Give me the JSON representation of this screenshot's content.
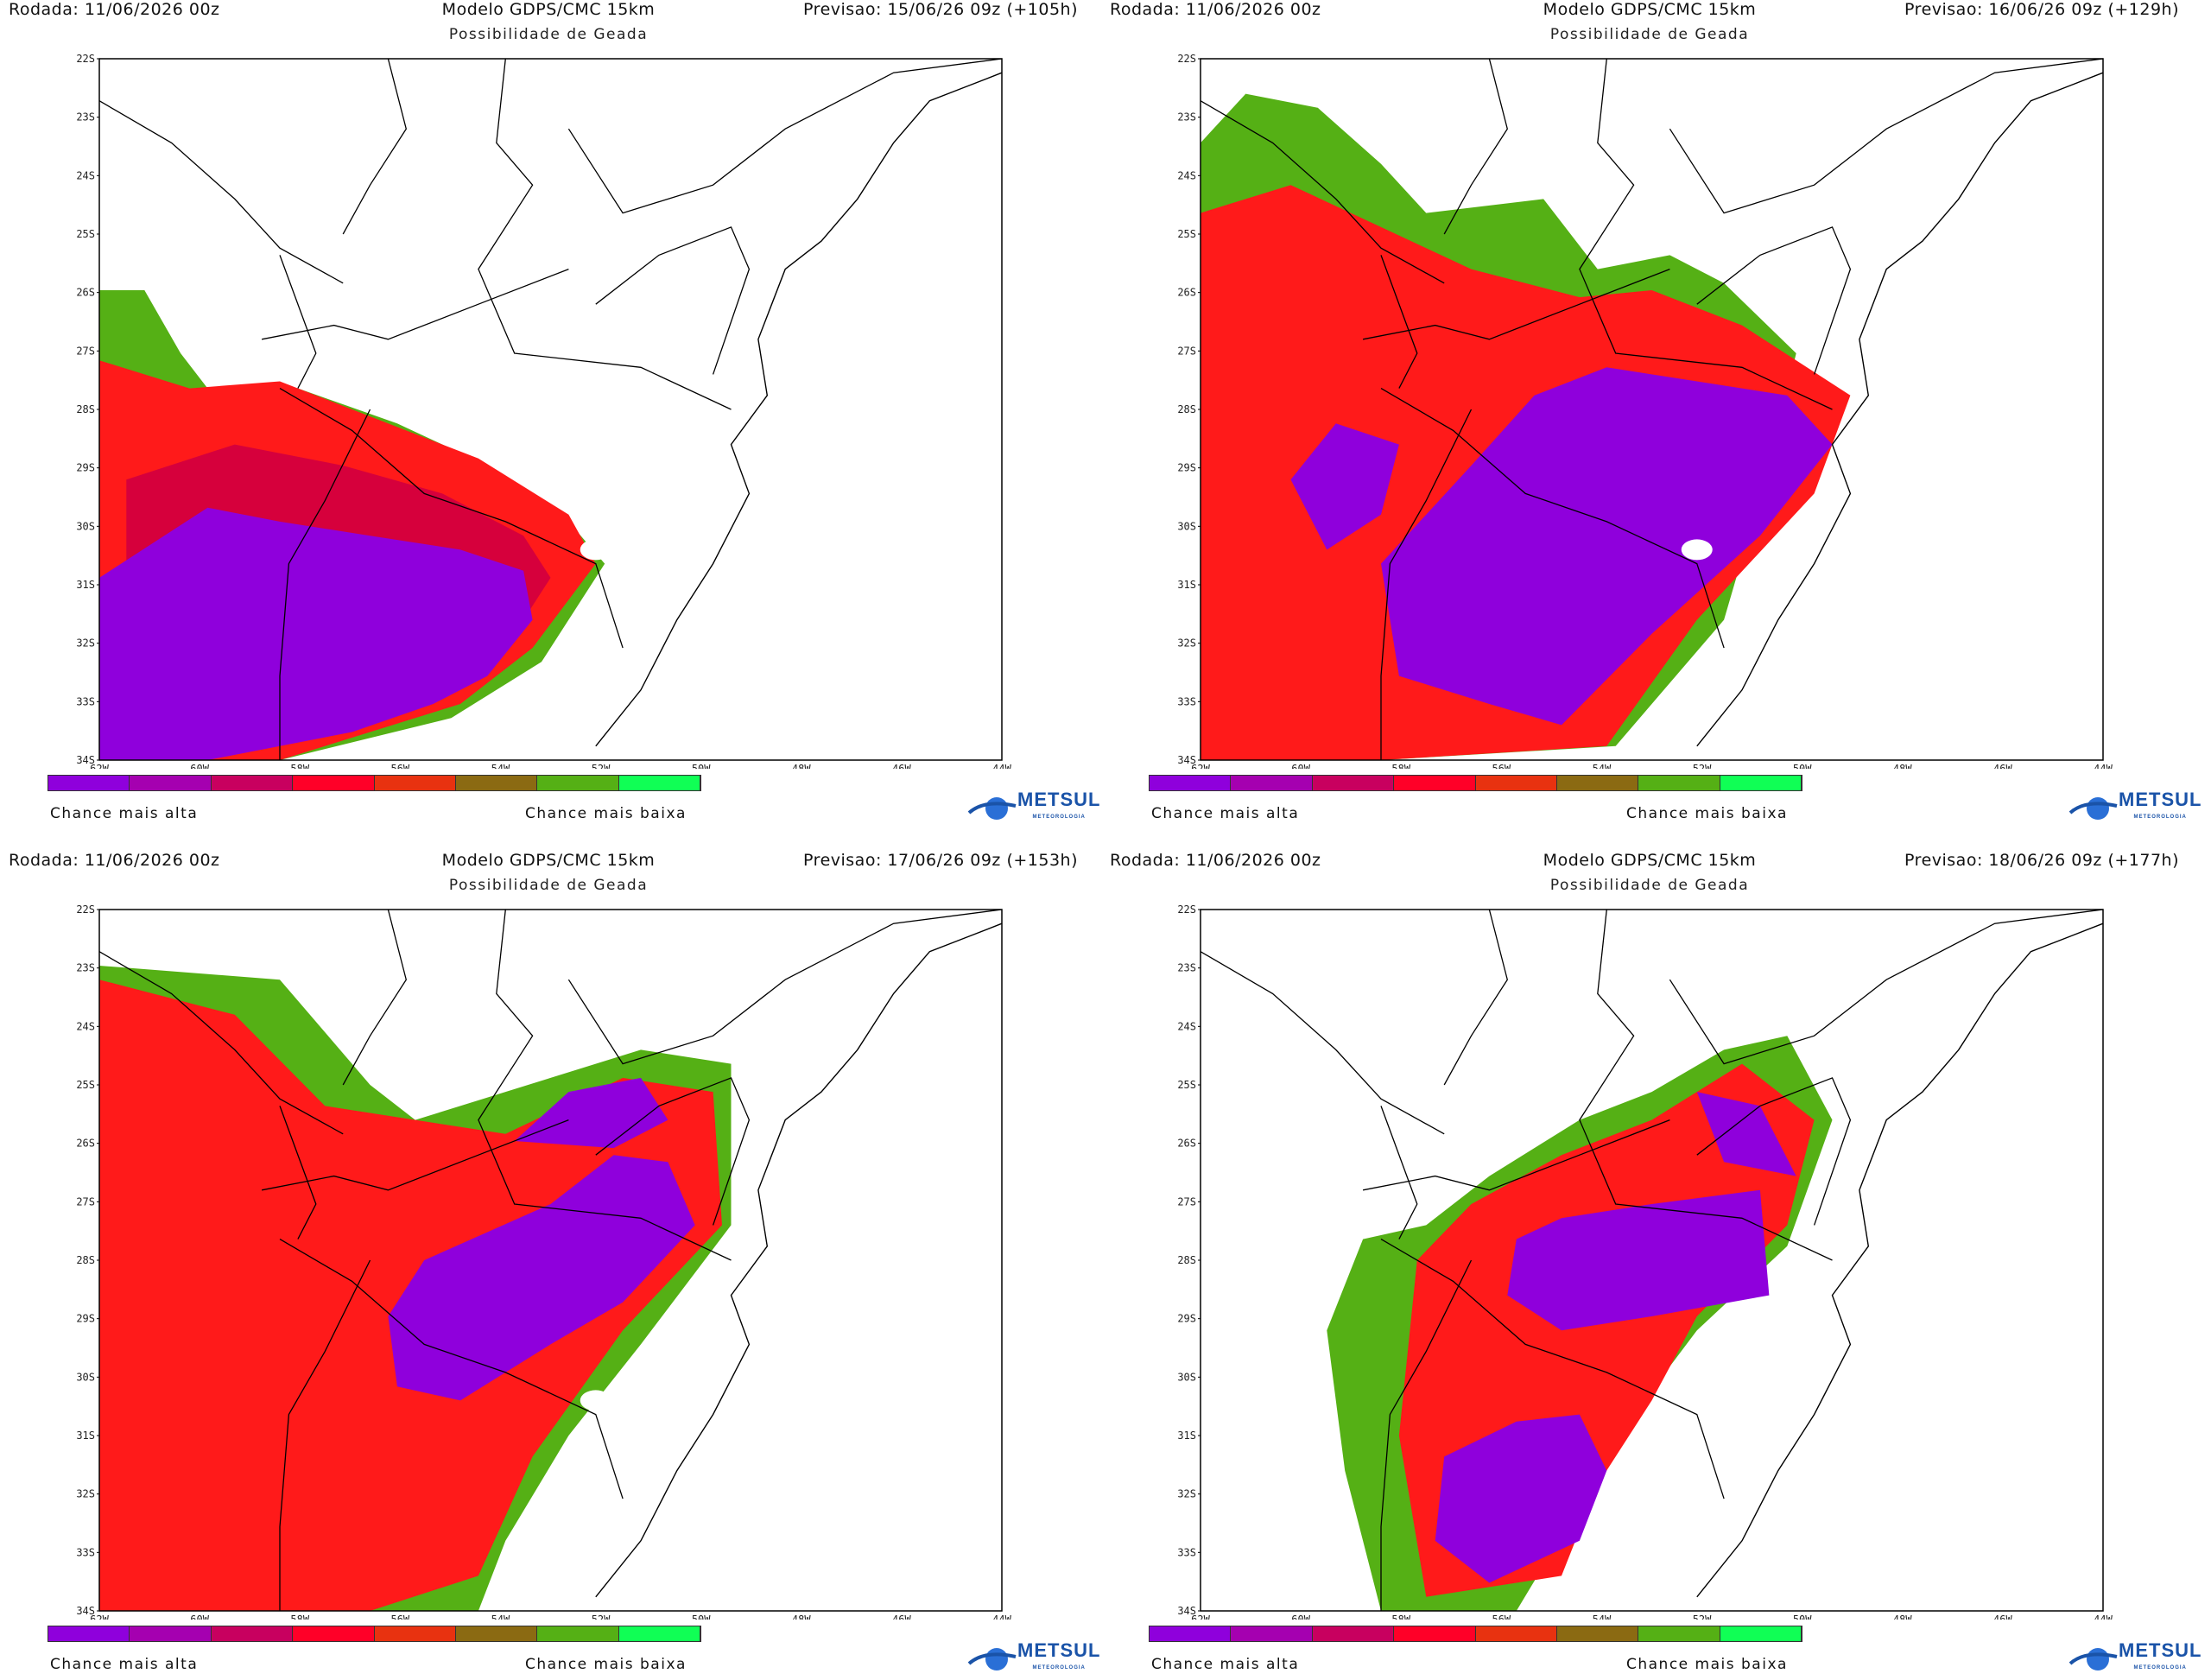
{
  "colors": {
    "legend": [
      "#8f00dc",
      "#a500b0",
      "#c8005f",
      "#ff0028",
      "#e83210",
      "#8b6a12",
      "#55b015",
      "#10ff55"
    ],
    "purple": "#8f00dc",
    "magenta": "#b2007c",
    "crimson": "#d6003c",
    "red": "#ff1a1a",
    "orange": "#e8401a",
    "brown": "#8b6a12",
    "green": "#55b015",
    "border": "#000000"
  },
  "legend_labels": {
    "high": "Chance mais alta",
    "low": "Chance mais baixa"
  },
  "logo": {
    "name": "METSUL",
    "sub": "METEOROLOGIA"
  },
  "lat_ticks": [
    "22S",
    "23S",
    "24S",
    "25S",
    "26S",
    "27S",
    "28S",
    "29S",
    "30S",
    "31S",
    "32S",
    "33S",
    "34S"
  ],
  "lon_ticks": [
    "62W",
    "60W",
    "58W",
    "56W",
    "54W",
    "52W",
    "50W",
    "48W",
    "46W",
    "44W"
  ],
  "panels": [
    {
      "run": "Rodada: 11/06/2026 00z",
      "model": "Modelo GDPS/CMC 15km",
      "forecast": "Previsao: 15/06/26 09z (+105h)",
      "subtitle": "Possibilidade de Geada"
    },
    {
      "run": "Rodada: 11/06/2026 00z",
      "model": "Modelo GDPS/CMC 15km",
      "forecast": "Previsao: 16/06/26 09z (+129h)",
      "subtitle": "Possibilidade de Geada"
    },
    {
      "run": "Rodada: 11/06/2026 00z",
      "model": "Modelo GDPS/CMC 15km",
      "forecast": "Previsao: 17/06/26 09z (+153h)",
      "subtitle": "Possibilidade de Geada"
    },
    {
      "run": "Rodada: 11/06/2026 00z",
      "model": "Modelo GDPS/CMC 15km",
      "forecast": "Previsao: 18/06/26 09z (+177h)",
      "subtitle": "Possibilidade de Geada"
    }
  ]
}
